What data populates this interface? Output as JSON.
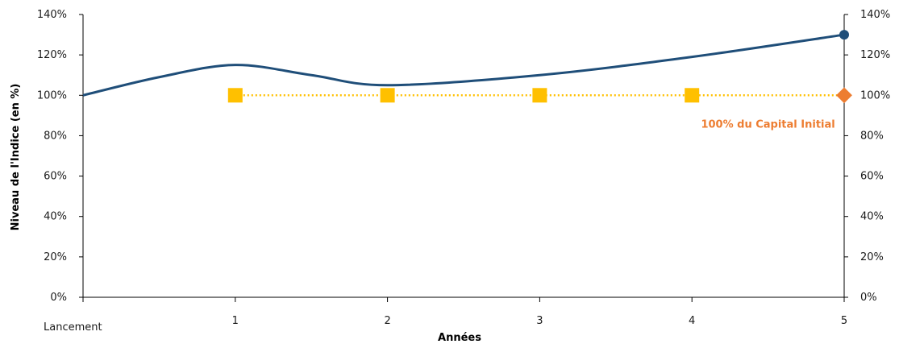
{
  "chart_data": {
    "type": "line",
    "xlabel": "Années",
    "ylabel": "Niveau de l'Indice (en %)",
    "categories": [
      "Lancement",
      "1",
      "2",
      "3",
      "4",
      "5"
    ],
    "yticks": [
      "0%",
      "20%",
      "40%",
      "60%",
      "80%",
      "100%",
      "120%",
      "140%"
    ],
    "ylim": [
      0,
      140
    ],
    "grid": false,
    "right_axis": true,
    "series": [
      {
        "kind": "index-curve",
        "color": "#1f4e79",
        "x": [
          0,
          0.5,
          1,
          1.5,
          2,
          3,
          4,
          5
        ],
        "values": [
          100,
          109,
          115,
          110,
          105,
          110,
          119,
          130
        ],
        "endpoint_marker": "circle"
      },
      {
        "kind": "capital-level",
        "color": "#ffc000",
        "style": "dotted",
        "x": [
          1,
          2,
          3,
          4,
          5
        ],
        "values": [
          100,
          100,
          100,
          100,
          100
        ],
        "marker": "square",
        "final_marker": "diamond",
        "final_marker_color": "#ed7d31"
      }
    ],
    "annotations": [
      {
        "text": "100% du Capital Initial",
        "color": "#ed7d31",
        "x": 4.5,
        "y": 86
      }
    ]
  }
}
